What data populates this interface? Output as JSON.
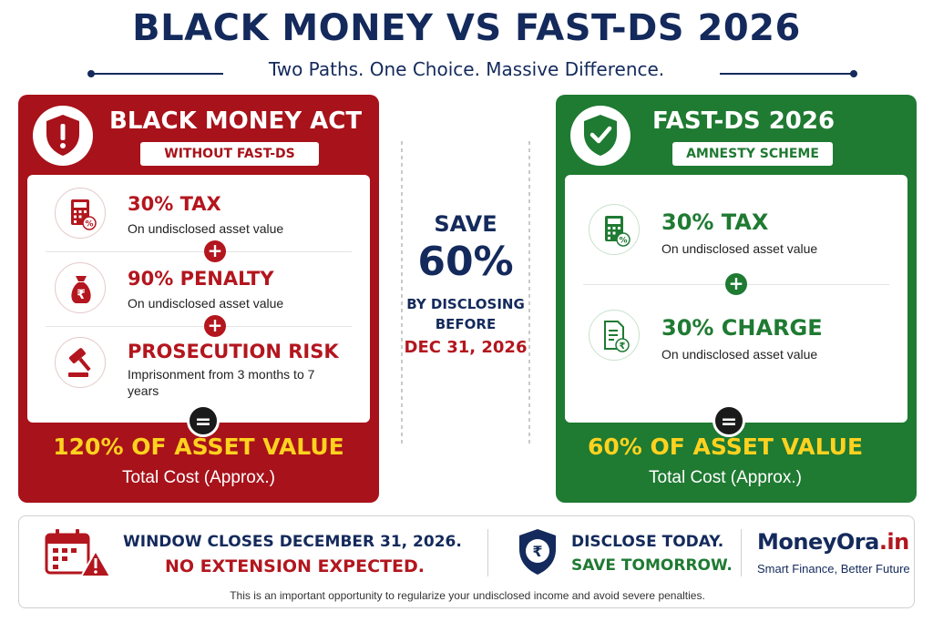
{
  "header": {
    "title": "BLACK MONEY VS FAST-DS 2026",
    "subtitle": "Two Paths. One Choice. Massive Difference."
  },
  "left_panel": {
    "title": "BLACK MONEY ACT",
    "badge": "WITHOUT FAST-DS",
    "icon": "shield-exclamation-icon",
    "items": [
      {
        "title": "30% TAX",
        "desc": "On undisclosed asset value",
        "icon": "calculator-percent-icon"
      },
      {
        "title": "90% PENALTY",
        "desc": "On undisclosed asset value",
        "icon": "money-bag-rupee-icon"
      },
      {
        "title": "PROSECUTION RISK",
        "desc": "Imprisonment from 3 months to 7 years",
        "icon": "gavel-icon"
      }
    ],
    "plus": "+",
    "equals": "=",
    "total": "120% OF ASSET VALUE",
    "total_sub": "Total Cost (Approx.)",
    "color": "#a8121a"
  },
  "right_panel": {
    "title": "FAST-DS 2026",
    "badge": "AMNESTY SCHEME",
    "icon": "shield-check-icon",
    "items": [
      {
        "title": "30% TAX",
        "desc": "On undisclosed asset value",
        "icon": "calculator-percent-icon"
      },
      {
        "title": "30% CHARGE",
        "desc": "On undisclosed asset value",
        "icon": "document-rupee-icon"
      }
    ],
    "plus": "+",
    "equals": "=",
    "total": "60% OF ASSET VALUE",
    "total_sub": "Total Cost (Approx.)",
    "color": "#1f7a32"
  },
  "center": {
    "save": "SAVE",
    "percent": "60%",
    "by_line1": "BY DISCLOSING",
    "by_line2": "BEFORE",
    "date": "DEC 31, 2026"
  },
  "footer": {
    "window_line1": "WINDOW CLOSES DECEMBER 31, 2026.",
    "window_line2": "NO EXTENSION EXPECTED.",
    "disclose_line1": "DISCLOSE TODAY.",
    "disclose_line2": "SAVE TOMORROW.",
    "brand_main": "MoneyOra",
    "brand_suffix": ".in",
    "tagline": "Smart Finance, Better Future",
    "note": "This is an important opportunity to regularize your undisclosed income and avoid severe penalties."
  }
}
